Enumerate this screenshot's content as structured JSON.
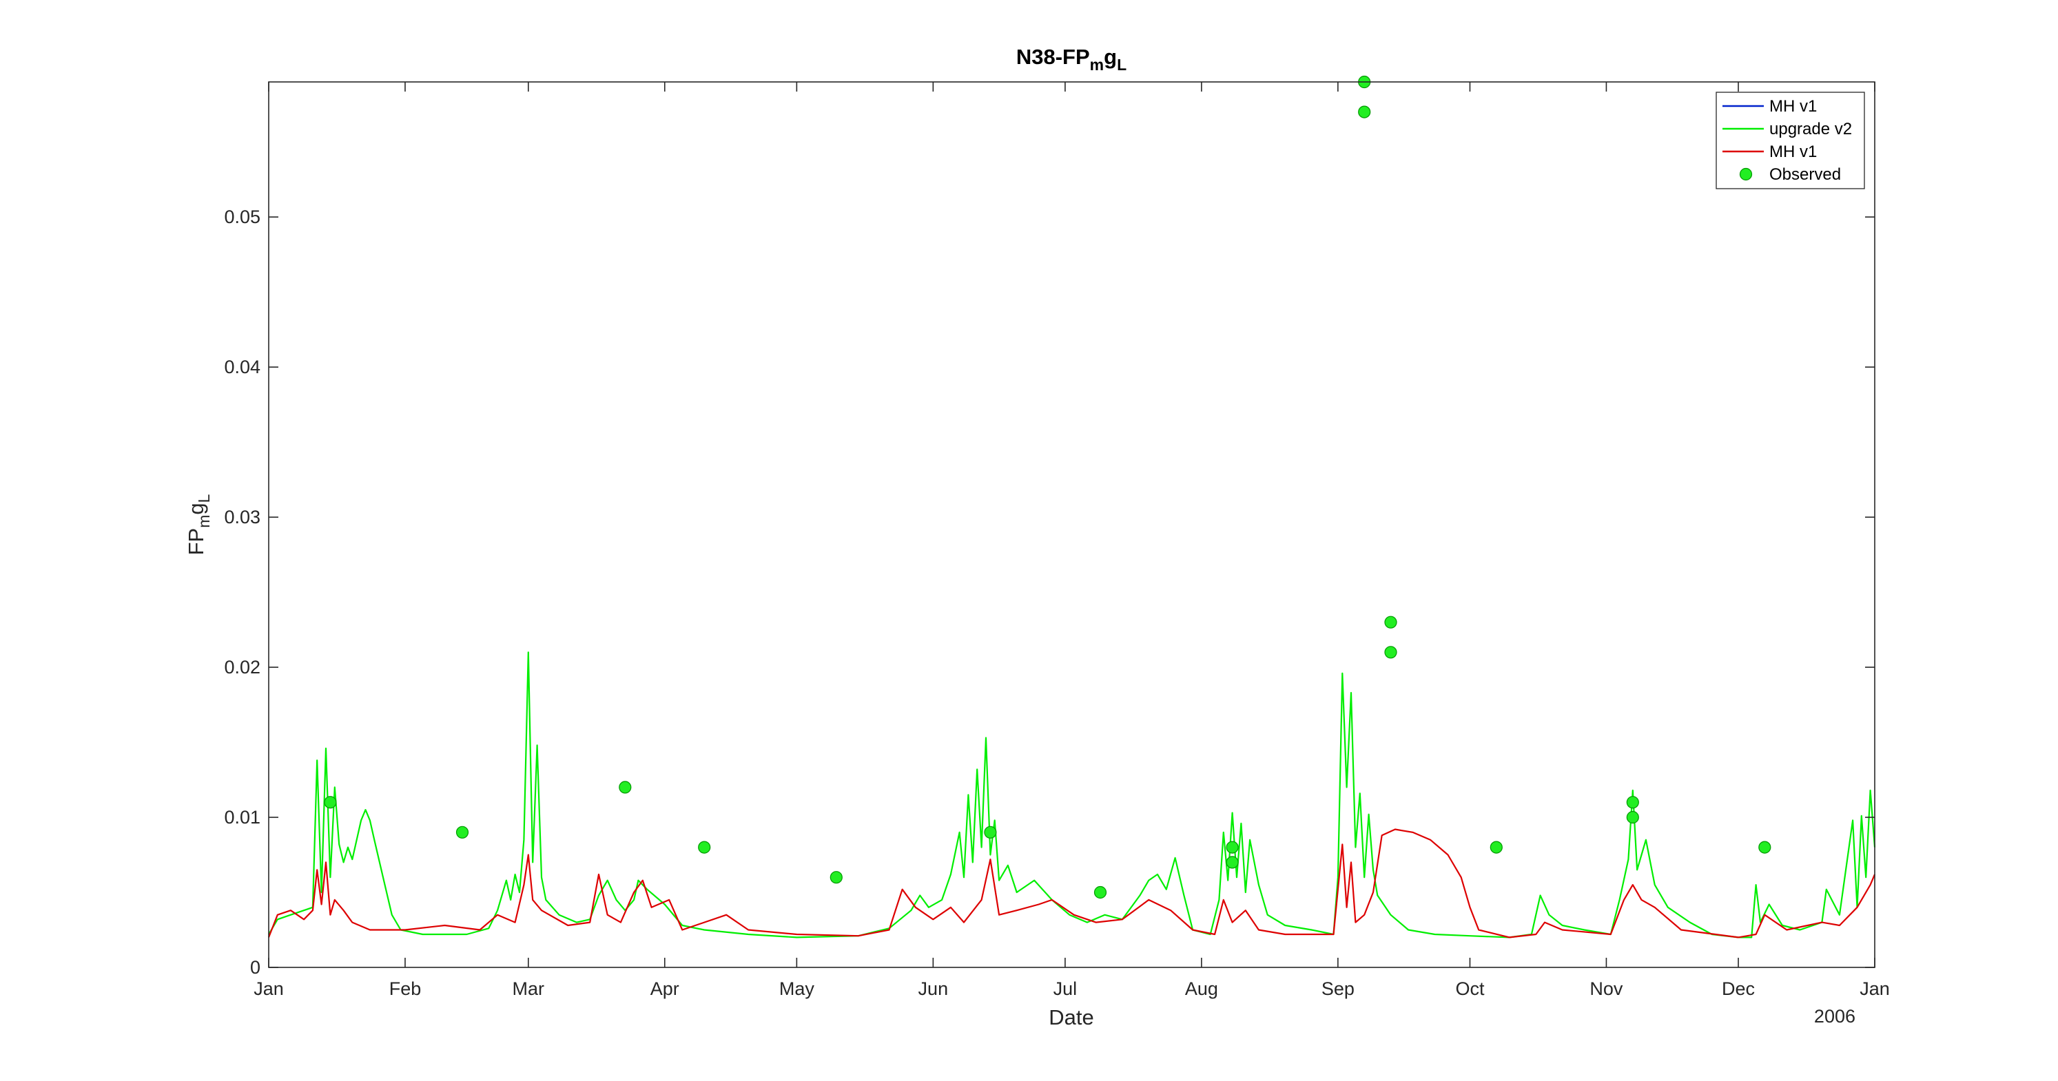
{
  "chart_data": {
    "type": "line",
    "title": "N38-FP",
    "title_sub": "m",
    "title_mid": "g",
    "title_sub2": "L",
    "xlabel": "Date",
    "ylabel": "FP",
    "ylabel_sub": "m",
    "ylabel_mid": "g",
    "ylabel_sub2": "L",
    "year_label": "2006",
    "xlim": [
      "2006-01-01",
      "2007-01-01"
    ],
    "ylim": [
      0,
      0.059
    ],
    "x_ticks": [
      {
        "date": "2006-01-01",
        "label": "Jan"
      },
      {
        "date": "2006-02-01",
        "label": "Feb"
      },
      {
        "date": "2006-03-01",
        "label": "Mar"
      },
      {
        "date": "2006-04-01",
        "label": "Apr"
      },
      {
        "date": "2006-05-01",
        "label": "May"
      },
      {
        "date": "2006-06-01",
        "label": "Jun"
      },
      {
        "date": "2006-07-01",
        "label": "Jul"
      },
      {
        "date": "2006-08-01",
        "label": "Aug"
      },
      {
        "date": "2006-09-01",
        "label": "Sep"
      },
      {
        "date": "2006-10-01",
        "label": "Oct"
      },
      {
        "date": "2006-11-01",
        "label": "Nov"
      },
      {
        "date": "2006-12-01",
        "label": "Dec"
      },
      {
        "date": "2007-01-01",
        "label": "Jan"
      }
    ],
    "y_ticks": [
      {
        "value": 0,
        "label": "0"
      },
      {
        "value": 0.01,
        "label": "0.01"
      },
      {
        "value": 0.02,
        "label": "0.02"
      },
      {
        "value": 0.03,
        "label": "0.03"
      },
      {
        "value": 0.04,
        "label": "0.04"
      },
      {
        "value": 0.05,
        "label": "0.05"
      }
    ],
    "grid": false,
    "legend_position": "top-right",
    "series": [
      {
        "name": "MH v1",
        "color": "#0022cc",
        "style": "line",
        "points": []
      },
      {
        "name": "upgrade v2",
        "color": "#00ee00",
        "style": "line",
        "points": [
          [
            "2006-01-01",
            0.0022
          ],
          [
            "2006-01-03",
            0.0032
          ],
          [
            "2006-01-06",
            0.0035
          ],
          [
            "2006-01-09",
            0.0038
          ],
          [
            "2006-01-11",
            0.004
          ],
          [
            "2006-01-12",
            0.0138
          ],
          [
            "2006-01-13",
            0.005
          ],
          [
            "2006-01-14",
            0.0146
          ],
          [
            "2006-01-15",
            0.006
          ],
          [
            "2006-01-16",
            0.012
          ],
          [
            "2006-01-17",
            0.0082
          ],
          [
            "2006-01-18",
            0.007
          ],
          [
            "2006-01-19",
            0.008
          ],
          [
            "2006-01-20",
            0.0072
          ],
          [
            "2006-01-21",
            0.0085
          ],
          [
            "2006-01-22",
            0.0098
          ],
          [
            "2006-01-23",
            0.0105
          ],
          [
            "2006-01-24",
            0.0098
          ],
          [
            "2006-01-25",
            0.0085
          ],
          [
            "2006-01-27",
            0.006
          ],
          [
            "2006-01-29",
            0.0035
          ],
          [
            "2006-01-31",
            0.0025
          ],
          [
            "2006-02-05",
            0.0022
          ],
          [
            "2006-02-15",
            0.0022
          ],
          [
            "2006-02-20",
            0.0026
          ],
          [
            "2006-02-22",
            0.0038
          ],
          [
            "2006-02-24",
            0.0058
          ],
          [
            "2006-02-25",
            0.0045
          ],
          [
            "2006-02-26",
            0.0062
          ],
          [
            "2006-02-27",
            0.005
          ],
          [
            "2006-02-28",
            0.0085
          ],
          [
            "2006-03-01",
            0.021
          ],
          [
            "2006-03-02",
            0.007
          ],
          [
            "2006-03-03",
            0.0148
          ],
          [
            "2006-03-04",
            0.006
          ],
          [
            "2006-03-05",
            0.0045
          ],
          [
            "2006-03-08",
            0.0035
          ],
          [
            "2006-03-12",
            0.003
          ],
          [
            "2006-03-15",
            0.0032
          ],
          [
            "2006-03-17",
            0.0048
          ],
          [
            "2006-03-19",
            0.0058
          ],
          [
            "2006-03-21",
            0.0045
          ],
          [
            "2006-03-23",
            0.0038
          ],
          [
            "2006-03-25",
            0.0045
          ],
          [
            "2006-03-26",
            0.0058
          ],
          [
            "2006-03-28",
            0.0052
          ],
          [
            "2006-04-01",
            0.0042
          ],
          [
            "2006-04-05",
            0.0028
          ],
          [
            "2006-04-10",
            0.0025
          ],
          [
            "2006-04-20",
            0.0022
          ],
          [
            "2006-05-01",
            0.002
          ],
          [
            "2006-05-15",
            0.0021
          ],
          [
            "2006-05-22",
            0.0026
          ],
          [
            "2006-05-27",
            0.0038
          ],
          [
            "2006-05-29",
            0.0048
          ],
          [
            "2006-05-31",
            0.004
          ],
          [
            "2006-06-03",
            0.0045
          ],
          [
            "2006-06-05",
            0.0062
          ],
          [
            "2006-06-07",
            0.009
          ],
          [
            "2006-06-08",
            0.006
          ],
          [
            "2006-06-09",
            0.0115
          ],
          [
            "2006-06-10",
            0.007
          ],
          [
            "2006-06-11",
            0.0132
          ],
          [
            "2006-06-12",
            0.008
          ],
          [
            "2006-06-13",
            0.0153
          ],
          [
            "2006-06-14",
            0.0075
          ],
          [
            "2006-06-15",
            0.0098
          ],
          [
            "2006-06-16",
            0.0058
          ],
          [
            "2006-06-18",
            0.0068
          ],
          [
            "2006-06-20",
            0.005
          ],
          [
            "2006-06-24",
            0.0058
          ],
          [
            "2006-06-28",
            0.0045
          ],
          [
            "2006-07-02",
            0.0035
          ],
          [
            "2006-07-06",
            0.003
          ],
          [
            "2006-07-10",
            0.0035
          ],
          [
            "2006-07-14",
            0.0032
          ],
          [
            "2006-07-18",
            0.0048
          ],
          [
            "2006-07-20",
            0.0058
          ],
          [
            "2006-07-22",
            0.0062
          ],
          [
            "2006-07-24",
            0.0052
          ],
          [
            "2006-07-26",
            0.0073
          ],
          [
            "2006-07-28",
            0.0048
          ],
          [
            "2006-07-30",
            0.0025
          ],
          [
            "2006-08-03",
            0.0022
          ],
          [
            "2006-08-05",
            0.0045
          ],
          [
            "2006-08-06",
            0.009
          ],
          [
            "2006-08-07",
            0.0058
          ],
          [
            "2006-08-08",
            0.0103
          ],
          [
            "2006-08-09",
            0.006
          ],
          [
            "2006-08-10",
            0.0096
          ],
          [
            "2006-08-11",
            0.005
          ],
          [
            "2006-08-12",
            0.0085
          ],
          [
            "2006-08-14",
            0.0055
          ],
          [
            "2006-08-16",
            0.0035
          ],
          [
            "2006-08-20",
            0.0028
          ],
          [
            "2006-08-26",
            0.0025
          ],
          [
            "2006-08-31",
            0.0022
          ],
          [
            "2006-09-01",
            0.006
          ],
          [
            "2006-09-02",
            0.0196
          ],
          [
            "2006-09-03",
            0.012
          ],
          [
            "2006-09-04",
            0.0183
          ],
          [
            "2006-09-05",
            0.008
          ],
          [
            "2006-09-06",
            0.0116
          ],
          [
            "2006-09-07",
            0.006
          ],
          [
            "2006-09-08",
            0.0102
          ],
          [
            "2006-09-09",
            0.0065
          ],
          [
            "2006-09-10",
            0.0048
          ],
          [
            "2006-09-13",
            0.0035
          ],
          [
            "2006-09-17",
            0.0025
          ],
          [
            "2006-09-23",
            0.0022
          ],
          [
            "2006-10-01",
            0.0021
          ],
          [
            "2006-10-10",
            0.002
          ],
          [
            "2006-10-15",
            0.0022
          ],
          [
            "2006-10-17",
            0.0048
          ],
          [
            "2006-10-19",
            0.0035
          ],
          [
            "2006-10-22",
            0.0028
          ],
          [
            "2006-10-27",
            0.0025
          ],
          [
            "2006-11-02",
            0.0022
          ],
          [
            "2006-11-04",
            0.0045
          ],
          [
            "2006-11-06",
            0.0072
          ],
          [
            "2006-11-07",
            0.0118
          ],
          [
            "2006-11-08",
            0.0065
          ],
          [
            "2006-11-10",
            0.0085
          ],
          [
            "2006-11-12",
            0.0055
          ],
          [
            "2006-11-15",
            0.004
          ],
          [
            "2006-11-20",
            0.003
          ],
          [
            "2006-11-25",
            0.0022
          ],
          [
            "2006-12-01",
            0.002
          ],
          [
            "2006-12-04",
            0.002
          ],
          [
            "2006-12-05",
            0.0055
          ],
          [
            "2006-12-06",
            0.003
          ],
          [
            "2006-12-08",
            0.0042
          ],
          [
            "2006-12-11",
            0.0028
          ],
          [
            "2006-12-15",
            0.0025
          ],
          [
            "2006-12-20",
            0.003
          ],
          [
            "2006-12-21",
            0.0052
          ],
          [
            "2006-12-24",
            0.0035
          ],
          [
            "2006-12-27",
            0.0098
          ],
          [
            "2006-12-28",
            0.004
          ],
          [
            "2006-12-29",
            0.0101
          ],
          [
            "2006-12-30",
            0.006
          ],
          [
            "2006-12-31",
            0.0118
          ],
          [
            "2007-01-01",
            0.008
          ]
        ]
      },
      {
        "name": "MH v1",
        "color": "#dd0000",
        "style": "line",
        "points": [
          [
            "2006-01-01",
            0.002
          ],
          [
            "2006-01-03",
            0.0035
          ],
          [
            "2006-01-06",
            0.0038
          ],
          [
            "2006-01-09",
            0.0032
          ],
          [
            "2006-01-11",
            0.0038
          ],
          [
            "2006-01-12",
            0.0065
          ],
          [
            "2006-01-13",
            0.0042
          ],
          [
            "2006-01-14",
            0.007
          ],
          [
            "2006-01-15",
            0.0035
          ],
          [
            "2006-01-16",
            0.0045
          ],
          [
            "2006-01-18",
            0.0038
          ],
          [
            "2006-01-20",
            0.003
          ],
          [
            "2006-01-24",
            0.0025
          ],
          [
            "2006-02-01",
            0.0025
          ],
          [
            "2006-02-10",
            0.0028
          ],
          [
            "2006-02-18",
            0.0025
          ],
          [
            "2006-02-22",
            0.0035
          ],
          [
            "2006-02-26",
            0.003
          ],
          [
            "2006-02-28",
            0.0055
          ],
          [
            "2006-03-01",
            0.0075
          ],
          [
            "2006-03-02",
            0.0045
          ],
          [
            "2006-03-04",
            0.0038
          ],
          [
            "2006-03-10",
            0.0028
          ],
          [
            "2006-03-15",
            0.003
          ],
          [
            "2006-03-17",
            0.0062
          ],
          [
            "2006-03-19",
            0.0035
          ],
          [
            "2006-03-22",
            0.003
          ],
          [
            "2006-03-25",
            0.005
          ],
          [
            "2006-03-27",
            0.0058
          ],
          [
            "2006-03-29",
            0.004
          ],
          [
            "2006-04-02",
            0.0045
          ],
          [
            "2006-04-05",
            0.0025
          ],
          [
            "2006-04-15",
            0.0035
          ],
          [
            "2006-04-20",
            0.0025
          ],
          [
            "2006-05-01",
            0.0022
          ],
          [
            "2006-05-15",
            0.0021
          ],
          [
            "2006-05-22",
            0.0025
          ],
          [
            "2006-05-25",
            0.0052
          ],
          [
            "2006-05-28",
            0.004
          ],
          [
            "2006-06-01",
            0.0032
          ],
          [
            "2006-06-05",
            0.004
          ],
          [
            "2006-06-08",
            0.003
          ],
          [
            "2006-06-12",
            0.0045
          ],
          [
            "2006-06-14",
            0.0072
          ],
          [
            "2006-06-16",
            0.0035
          ],
          [
            "2006-06-20",
            0.0038
          ],
          [
            "2006-06-25",
            0.0042
          ],
          [
            "2006-06-28",
            0.0045
          ],
          [
            "2006-07-03",
            0.0035
          ],
          [
            "2006-07-08",
            0.003
          ],
          [
            "2006-07-14",
            0.0032
          ],
          [
            "2006-07-20",
            0.0045
          ],
          [
            "2006-07-25",
            0.0038
          ],
          [
            "2006-07-30",
            0.0025
          ],
          [
            "2006-08-04",
            0.0022
          ],
          [
            "2006-08-06",
            0.0045
          ],
          [
            "2006-08-08",
            0.003
          ],
          [
            "2006-08-11",
            0.0038
          ],
          [
            "2006-08-14",
            0.0025
          ],
          [
            "2006-08-20",
            0.0022
          ],
          [
            "2006-08-31",
            0.0022
          ],
          [
            "2006-09-02",
            0.0082
          ],
          [
            "2006-09-03",
            0.004
          ],
          [
            "2006-09-04",
            0.007
          ],
          [
            "2006-09-05",
            0.003
          ],
          [
            "2006-09-07",
            0.0035
          ],
          [
            "2006-09-09",
            0.005
          ],
          [
            "2006-09-11",
            0.0088
          ],
          [
            "2006-09-14",
            0.0092
          ],
          [
            "2006-09-18",
            0.009
          ],
          [
            "2006-09-22",
            0.0085
          ],
          [
            "2006-09-26",
            0.0075
          ],
          [
            "2006-09-29",
            0.006
          ],
          [
            "2006-10-01",
            0.004
          ],
          [
            "2006-10-03",
            0.0025
          ],
          [
            "2006-10-10",
            0.002
          ],
          [
            "2006-10-16",
            0.0022
          ],
          [
            "2006-10-18",
            0.003
          ],
          [
            "2006-10-22",
            0.0025
          ],
          [
            "2006-11-02",
            0.0022
          ],
          [
            "2006-11-05",
            0.0045
          ],
          [
            "2006-11-07",
            0.0055
          ],
          [
            "2006-11-09",
            0.0045
          ],
          [
            "2006-11-12",
            0.004
          ],
          [
            "2006-11-18",
            0.0025
          ],
          [
            "2006-12-01",
            0.002
          ],
          [
            "2006-12-05",
            0.0022
          ],
          [
            "2006-12-07",
            0.0035
          ],
          [
            "2006-12-12",
            0.0025
          ],
          [
            "2006-12-20",
            0.003
          ],
          [
            "2006-12-24",
            0.0028
          ],
          [
            "2006-12-28",
            0.004
          ],
          [
            "2006-12-31",
            0.0055
          ],
          [
            "2007-01-01",
            0.0062
          ]
        ]
      },
      {
        "name": "Observed",
        "color": "#22ee22",
        "style": "marker",
        "points": [
          [
            "2006-01-15",
            0.011
          ],
          [
            "2006-02-14",
            0.009
          ],
          [
            "2006-03-23",
            0.012
          ],
          [
            "2006-04-10",
            0.008
          ],
          [
            "2006-05-10",
            0.006
          ],
          [
            "2006-06-14",
            0.009
          ],
          [
            "2006-07-09",
            0.005
          ],
          [
            "2006-08-08",
            0.008
          ],
          [
            "2006-08-08",
            0.007
          ],
          [
            "2006-09-07",
            0.059
          ],
          [
            "2006-09-07",
            0.057
          ],
          [
            "2006-09-13",
            0.023
          ],
          [
            "2006-09-13",
            0.021
          ],
          [
            "2006-10-07",
            0.008
          ],
          [
            "2006-11-07",
            0.011
          ],
          [
            "2006-11-07",
            0.01
          ],
          [
            "2006-12-07",
            0.008
          ]
        ]
      }
    ]
  }
}
